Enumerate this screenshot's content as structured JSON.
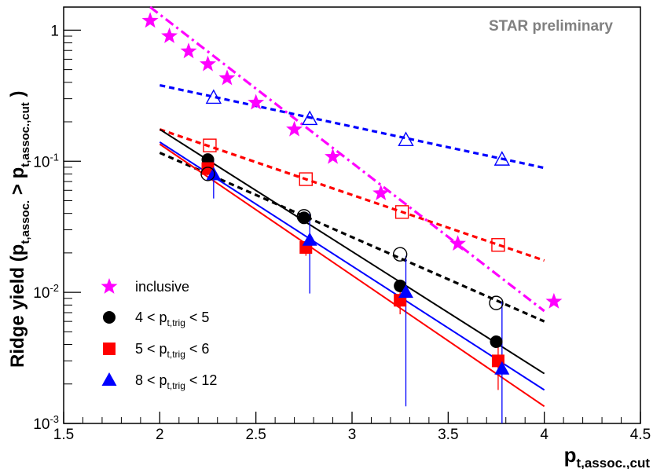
{
  "chart_data": {
    "type": "scatter",
    "title": "",
    "annotation": "STAR preliminary",
    "xlabel": {
      "main": "p",
      "sub": "t,assoc.,cut"
    },
    "ylabel": {
      "prefix": "Ridge yield (p",
      "sub1": "t,assoc.",
      "middle": " > p",
      "sub2": "t,assoc.,cut",
      "suffix": " )"
    },
    "xlim": [
      1.5,
      4.5
    ],
    "ylim": [
      0.001,
      1.5
    ],
    "yscale": "log",
    "grid": false,
    "legend_position": "bottom-left",
    "x_ticks": [
      {
        "v": 1.5,
        "label": "1.5"
      },
      {
        "v": 2,
        "label": "2"
      },
      {
        "v": 2.5,
        "label": "2.5"
      },
      {
        "v": 3,
        "label": "3"
      },
      {
        "v": 3.5,
        "label": "3.5"
      },
      {
        "v": 4,
        "label": "4"
      },
      {
        "v": 4.5,
        "label": "4.5"
      }
    ],
    "y_ticks": [
      {
        "v": 0.001,
        "base": "10",
        "exp": "-3"
      },
      {
        "v": 0.01,
        "base": "10",
        "exp": "-2"
      },
      {
        "v": 0.1,
        "base": "10",
        "exp": "-1"
      },
      {
        "v": 1,
        "base": "1",
        "exp": ""
      }
    ],
    "series": [
      {
        "name": "inclusive",
        "name_parts": {
          "pre": "inclusive",
          "sub": "",
          "post": ""
        },
        "color": "#ff00ff",
        "marker": "star",
        "x": [
          1.95,
          2.05,
          2.15,
          2.25,
          2.35,
          2.5,
          2.7,
          2.9,
          3.15,
          3.55,
          4.05
        ],
        "y": [
          1.18,
          0.9,
          0.69,
          0.55,
          0.43,
          0.28,
          0.175,
          0.108,
          0.057,
          0.0235,
          0.0085
        ],
        "yerr_low": [],
        "yerr_high": []
      },
      {
        "name": "4 < p t,trig < 5",
        "name_parts": {
          "pre": "4 < p",
          "sub": "t,trig",
          "post": " < 5"
        },
        "color": "#000000",
        "marker": "circle",
        "x": [
          2.25,
          2.75,
          3.25,
          3.75
        ],
        "y": [
          0.103,
          0.037,
          0.0112,
          0.0042
        ],
        "yerr_low": [
          0.103,
          0.037,
          0.0112,
          0.0042
        ],
        "yerr_high": [
          0.103,
          0.037,
          0.0112,
          0.0042
        ]
      },
      {
        "name": "5 < p t,trig < 6",
        "name_parts": {
          "pre": "5 < p",
          "sub": "t,trig",
          "post": " < 6"
        },
        "color": "#ff0000",
        "marker": "square",
        "x": [
          2.25,
          2.76,
          3.25,
          3.76
        ],
        "y": [
          0.088,
          0.022,
          0.0087,
          0.003
        ],
        "yerr_low": [
          0.078,
          0.019,
          0.0068,
          0.0018
        ],
        "yerr_high": [
          0.098,
          0.025,
          0.0102,
          0.0043
        ]
      },
      {
        "name": "8 < p t,trig < 12",
        "name_parts": {
          "pre": "8 < p",
          "sub": "t,trig",
          "post": " < 12"
        },
        "color": "#0000ff",
        "marker": "triangle",
        "x": [
          2.28,
          2.78,
          3.28,
          3.78
        ],
        "y": [
          0.079,
          0.025,
          0.01,
          0.0026
        ],
        "yerr_low": [
          0.052,
          0.0098,
          0.00135,
          0.001
        ],
        "yerr_high": [
          0.105,
          0.04,
          0.019,
          0.0085
        ]
      },
      {
        "name": "",
        "color": "#000000",
        "marker": "open-circle",
        "x": [
          2.25,
          2.75,
          3.25,
          3.75
        ],
        "y": [
          0.08,
          0.038,
          0.0195,
          0.0083
        ],
        "yerr_low": [],
        "yerr_high": []
      },
      {
        "name": "",
        "color": "#ff0000",
        "marker": "open-square",
        "x": [
          2.26,
          2.76,
          3.26,
          3.76
        ],
        "y": [
          0.132,
          0.073,
          0.041,
          0.023
        ],
        "yerr_low": [],
        "yerr_high": []
      },
      {
        "name": "",
        "color": "#0000ff",
        "marker": "open-triangle",
        "x": [
          2.28,
          2.78,
          3.28,
          3.78
        ],
        "y": [
          0.305,
          0.21,
          0.145,
          0.103
        ],
        "yerr_low": [],
        "yerr_high": []
      }
    ],
    "fits": [
      {
        "color": "#ff00ff",
        "style": "dash-dot",
        "x": [
          1.95,
          4.0
        ],
        "y": [
          1.5,
          0.0072
        ]
      },
      {
        "color": "#0000ff",
        "style": "dashed",
        "x": [
          2.0,
          4.0
        ],
        "y": [
          0.38,
          0.089
        ]
      },
      {
        "color": "#ff0000",
        "style": "dashed",
        "x": [
          2.0,
          4.0
        ],
        "y": [
          0.175,
          0.0175
        ]
      },
      {
        "color": "#000000",
        "style": "dashed",
        "x": [
          2.0,
          4.0
        ],
        "y": [
          0.116,
          0.006
        ]
      },
      {
        "color": "#000000",
        "style": "solid",
        "x": [
          2.0,
          4.0
        ],
        "y": [
          0.175,
          0.0024
        ]
      },
      {
        "color": "#0000ff",
        "style": "solid",
        "x": [
          2.0,
          4.0
        ],
        "y": [
          0.14,
          0.0018
        ]
      },
      {
        "color": "#ff0000",
        "style": "solid",
        "x": [
          2.0,
          4.0
        ],
        "y": [
          0.135,
          0.00135
        ]
      }
    ]
  }
}
